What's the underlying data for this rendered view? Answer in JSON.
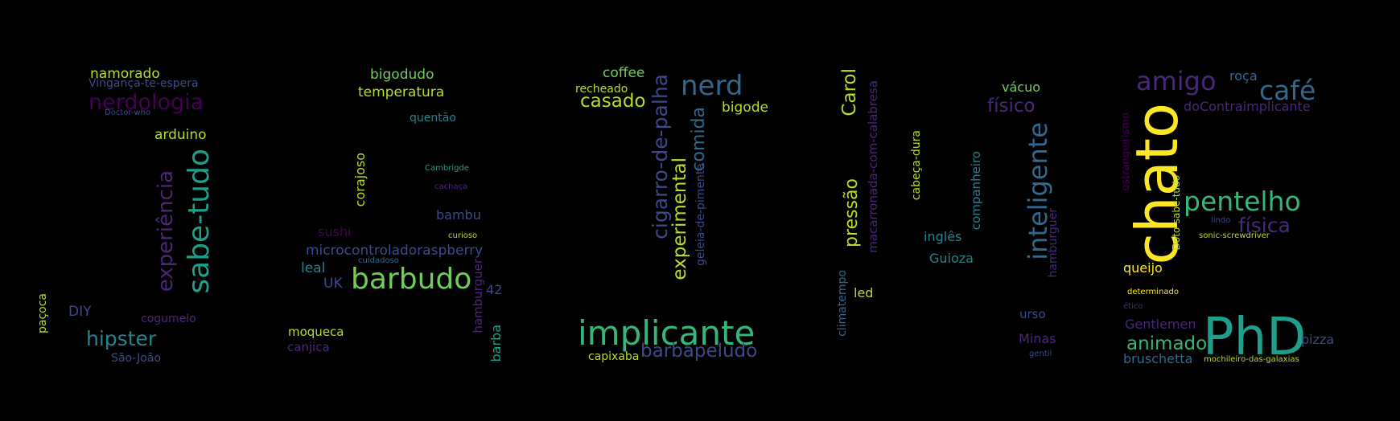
{
  "wordcloud": {
    "palette": {
      "dark_purple": "#440154",
      "purple": "#482878",
      "indigo": "#3e4989",
      "blue": "#31688e",
      "teal": "#26828e",
      "green_teal": "#1f9e89",
      "green": "#35b779",
      "light_green": "#6ece58",
      "lime": "#b5de2b",
      "yellow": "#fde725"
    },
    "words": [
      "namorado",
      "Vingança-te-espera",
      "nerdologia",
      "Doctor-who",
      "arduino",
      "sabe-tudo",
      "experiência",
      "paçoca",
      "DIY",
      "cogumelo",
      "hipster",
      "São-João",
      "bigodudo",
      "temperatura",
      "quentão",
      "Cambrigde",
      "cachaça",
      "corajoso",
      "bambu",
      "sushi",
      "curioso",
      "microcontroladoraspberry",
      "cuidadoso",
      "leal",
      "barbudo",
      "UK",
      "42",
      "hamburguer",
      "moqueca",
      "canjica",
      "barba",
      "coffee",
      "recheado",
      "casado",
      "cigarro-de-palha",
      "nerd",
      "bigode",
      "comida",
      "experimental",
      "geleia-de-pimenta",
      "implicante",
      "capixaba",
      "barbapeludo",
      "Carol",
      "macarronada-com-calabresa",
      "pressão",
      "climatempo",
      "led",
      "cabeça-dura",
      "companheiro",
      "inglês",
      "Guioza",
      "vácuo",
      "físico",
      "inteligente",
      "hamburguer",
      "urso",
      "Minas",
      "gentil",
      "amigo",
      "roça",
      "café",
      "doContraimplicante",
      "estrangeirismo",
      "chato",
      "Doto-sabe-tudo",
      "pentelho",
      "lindo",
      "física",
      "sonic-screwdriver",
      "queijo",
      "determinado",
      "ético",
      "Gentlemen",
      "PhD",
      "animado",
      "pizza",
      "bruschetta",
      "mochileiro-das-galaxias"
    ]
  }
}
